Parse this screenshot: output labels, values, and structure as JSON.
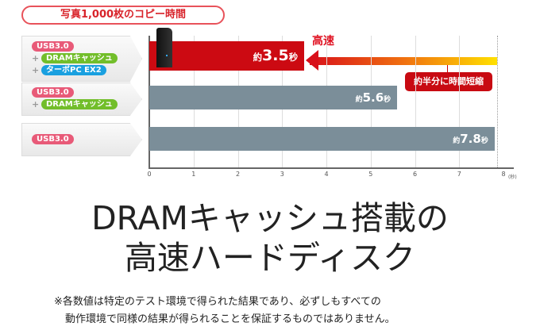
{
  "chart_data": {
    "type": "bar",
    "orientation": "horizontal",
    "title": "写真1,000枚のコピー時間",
    "categories": [
      {
        "tags": [
          {
            "text": "USB3.0",
            "color": "#e85a78"
          },
          {
            "text": "DRAMキャッシュ",
            "color": "#72be2a"
          },
          {
            "text": "ターボPC EX2",
            "color": "#1aa0e0"
          }
        ]
      },
      {
        "tags": [
          {
            "text": "USB3.0",
            "color": "#e85a78"
          },
          {
            "text": "DRAMキャッシュ",
            "color": "#72be2a"
          }
        ]
      },
      {
        "tags": [
          {
            "text": "USB3.0",
            "color": "#e85a78"
          }
        ]
      }
    ],
    "values": [
      3.5,
      5.6,
      7.8
    ],
    "value_labels": [
      {
        "prefix": "約",
        "num": "3.5",
        "unit": "秒"
      },
      {
        "prefix": "約",
        "num": "5.6",
        "unit": "秒"
      },
      {
        "prefix": "約",
        "num": "7.8",
        "unit": "秒"
      }
    ],
    "bar_colors": [
      "#cc0a12",
      "#7b8e99",
      "#7b8e99"
    ],
    "xlim": [
      0,
      8
    ],
    "xticks": [
      "0",
      "1",
      "2",
      "3",
      "4",
      "5",
      "6",
      "7",
      "8"
    ],
    "xunit": "(秒)",
    "grid": true,
    "annotations": {
      "arrow_label": "高速",
      "callout": "約半分に時間短縮"
    }
  },
  "headline": [
    "DRAMキャッシュ搭載の",
    "高速ハードディスク"
  ],
  "note": [
    "※各数値は特定のテスト環境で得られた結果であり、必ずしもすべての",
    "動作環境で同様の結果が得られることを保証するものではありません。"
  ]
}
